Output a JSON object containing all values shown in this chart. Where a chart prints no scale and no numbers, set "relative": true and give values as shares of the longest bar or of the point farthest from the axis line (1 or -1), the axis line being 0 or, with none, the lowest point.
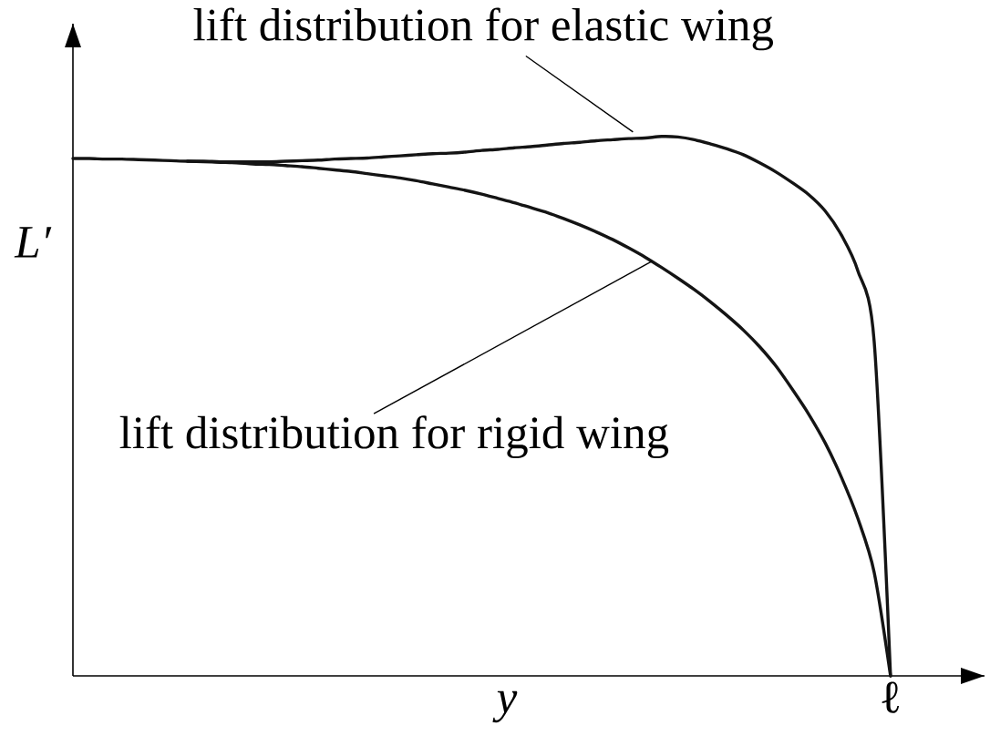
{
  "chart_data": {
    "type": "line",
    "relative": true,
    "xlabel": "y",
    "ylabel": "L′",
    "annotations": [
      "ℓ"
    ],
    "marker": "none",
    "line_style": "solid",
    "categories": [
      null,
      null,
      null,
      null,
      null,
      null,
      null,
      null,
      null,
      null,
      null,
      null,
      null,
      null,
      null,
      null,
      null,
      null,
      null,
      null,
      null,
      null,
      null,
      null,
      null,
      null,
      null,
      null,
      null,
      null,
      null,
      null,
      null,
      null,
      null,
      null,
      null,
      null,
      null,
      null,
      null,
      null,
      null,
      null,
      null,
      null,
      null,
      null,
      null,
      null,
      null
    ],
    "series": [
      {
        "name": "lift distribution for elastic wing",
        "color": "#141414",
        "values": [
          0.959,
          0.959,
          0.958,
          0.958,
          0.957,
          0.956,
          0.955,
          0.954,
          0.954,
          0.953,
          0.953,
          0.953,
          0.953,
          0.954,
          0.955,
          0.956,
          0.958,
          0.959,
          0.96,
          0.962,
          0.964,
          0.966,
          0.968,
          0.969,
          0.971,
          0.974,
          0.976,
          0.979,
          0.981,
          0.984,
          0.987,
          0.989,
          0.992,
          0.994,
          0.996,
          0.997,
          1,
          0.999,
          0.994,
          0.986,
          0.977,
          0.966,
          0.951,
          0.934,
          0.914,
          0.892,
          0.862,
          0.817,
          0.751,
          0.62,
          0
        ]
      },
      {
        "name": "lift distribution for rigid wing",
        "color": "#141414",
        "values": [
          null,
          null,
          null,
          null,
          null,
          null,
          null,
          0.954,
          0.953,
          0.952,
          0.951,
          0.949,
          0.948,
          0.946,
          0.944,
          0.941,
          0.938,
          0.935,
          0.931,
          0.927,
          0.923,
          0.918,
          0.912,
          0.906,
          0.9,
          0.893,
          0.885,
          0.877,
          0.868,
          0.859,
          0.848,
          0.836,
          0.823,
          0.809,
          0.793,
          0.776,
          0.757,
          0.737,
          0.716,
          0.693,
          0.668,
          0.641,
          0.61,
          0.574,
          0.531,
          0.485,
          0.432,
          0.368,
          0.292,
          0.192,
          0
        ]
      }
    ]
  }
}
